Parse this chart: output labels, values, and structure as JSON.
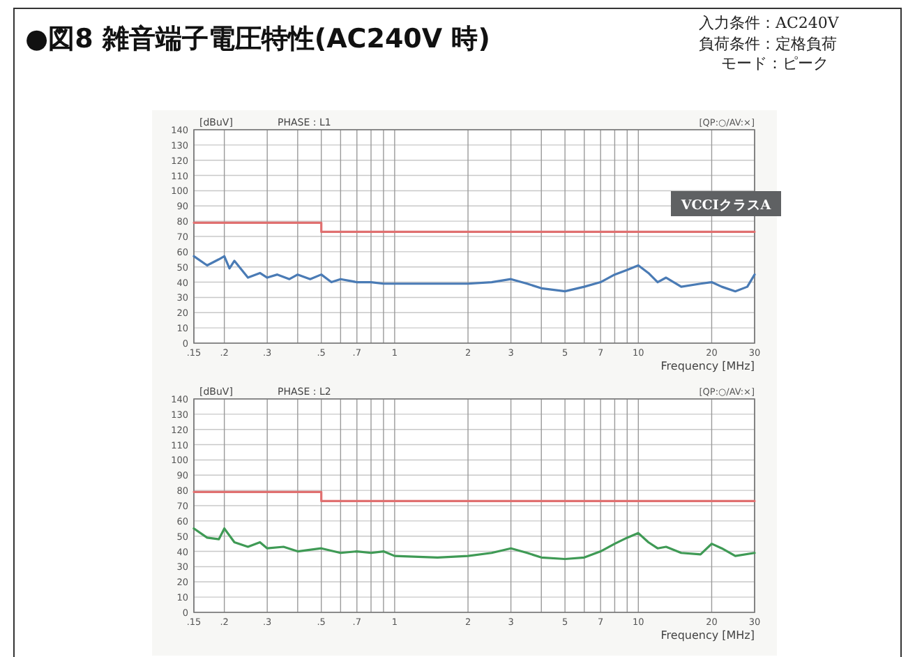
{
  "chart_data": [
    {
      "type": "line",
      "title": "●図8 雑音端子電圧特性(AC240V 時)",
      "subtitle": "PHASE : L1",
      "ylabel": "[dBuV]",
      "xlabel": "Frequency [MHz]",
      "annotations": [
        "入力条件：AC240V",
        "負荷条件：定格負荷",
        "モード：ピーク",
        "[QP:○/AV:×]",
        "VCCIクラスA"
      ],
      "log": "x",
      "xlim": [
        0.15,
        30
      ],
      "ylim": [
        0,
        140
      ],
      "grid": true,
      "xticks": [
        {
          "value": 0.15,
          "label": ".15"
        },
        {
          "value": 0.2,
          "label": ".2"
        },
        {
          "value": 0.3,
          "label": ".3"
        },
        {
          "value": 0.4,
          "label": null
        },
        {
          "value": 0.5,
          "label": ".5"
        },
        {
          "value": 0.6,
          "label": null
        },
        {
          "value": 0.7,
          "label": ".7"
        },
        {
          "value": 0.8,
          "label": null
        },
        {
          "value": 0.9,
          "label": null
        },
        1,
        2,
        3,
        {
          "value": 4,
          "label": null
        },
        5,
        {
          "value": 6,
          "label": null
        },
        7,
        {
          "value": 8,
          "label": null
        },
        {
          "value": 9,
          "label": null
        },
        10,
        20,
        30
      ],
      "yticks": [
        0,
        10,
        20,
        30,
        40,
        50,
        60,
        70,
        80,
        90,
        100,
        110,
        120,
        130,
        140
      ],
      "series": [
        {
          "color": "#4a7bb5",
          "x": [
            0.15,
            0.17,
            0.19,
            0.2,
            0.21,
            0.22,
            0.25,
            0.28,
            0.3,
            0.33,
            0.37,
            0.4,
            0.45,
            0.5,
            0.55,
            0.6,
            0.7,
            0.8,
            0.9,
            1,
            1.5,
            2,
            2.5,
            3,
            3.5,
            4,
            5,
            6,
            7,
            8,
            9,
            10,
            11,
            12,
            13,
            15,
            18,
            20,
            22,
            25,
            28,
            30
          ],
          "values": [
            57,
            51,
            55,
            57,
            49,
            54,
            43,
            46,
            43,
            45,
            42,
            45,
            42,
            45,
            40,
            42,
            40,
            40,
            39,
            39,
            39,
            39,
            40,
            42,
            39,
            36,
            34,
            37,
            40,
            45,
            48,
            51,
            46,
            40,
            43,
            37,
            39,
            40,
            37,
            34,
            37,
            45
          ]
        },
        {
          "color": "#e07070",
          "x": [
            0.15,
            0.5,
            0.5,
            30
          ],
          "values": [
            79,
            79,
            73,
            73
          ]
        }
      ]
    },
    {
      "type": "line",
      "subtitle": "PHASE : L2",
      "ylabel": "[dBuV]",
      "xlabel": "Frequency [MHz]",
      "annotations": [
        "[QP:○/AV:×]"
      ],
      "log": "x",
      "xlim": [
        0.15,
        30
      ],
      "ylim": [
        0,
        140
      ],
      "grid": true,
      "xticks": [
        {
          "value": 0.15,
          "label": ".15"
        },
        {
          "value": 0.2,
          "label": ".2"
        },
        {
          "value": 0.3,
          "label": ".3"
        },
        {
          "value": 0.4,
          "label": null
        },
        {
          "value": 0.5,
          "label": ".5"
        },
        {
          "value": 0.6,
          "label": null
        },
        {
          "value": 0.7,
          "label": ".7"
        },
        {
          "value": 0.8,
          "label": null
        },
        {
          "value": 0.9,
          "label": null
        },
        1,
        2,
        3,
        {
          "value": 4,
          "label": null
        },
        5,
        {
          "value": 6,
          "label": null
        },
        7,
        {
          "value": 8,
          "label": null
        },
        {
          "value": 9,
          "label": null
        },
        10,
        20,
        30
      ],
      "yticks": [
        0,
        10,
        20,
        30,
        40,
        50,
        60,
        70,
        80,
        90,
        100,
        110,
        120,
        130,
        140
      ],
      "series": [
        {
          "color": "#3f9a55",
          "x": [
            0.15,
            0.17,
            0.19,
            0.2,
            0.22,
            0.25,
            0.28,
            0.3,
            0.35,
            0.4,
            0.5,
            0.6,
            0.7,
            0.8,
            0.9,
            1,
            1.5,
            2,
            2.5,
            3,
            3.5,
            4,
            5,
            6,
            7,
            8,
            9,
            10,
            11,
            12,
            13,
            15,
            18,
            20,
            22,
            25,
            30
          ],
          "values": [
            55,
            49,
            48,
            55,
            46,
            43,
            46,
            42,
            43,
            40,
            42,
            39,
            40,
            39,
            40,
            37,
            36,
            37,
            39,
            42,
            39,
            36,
            35,
            36,
            40,
            45,
            49,
            52,
            46,
            42,
            43,
            39,
            38,
            45,
            42,
            37,
            39
          ]
        },
        {
          "color": "#e07070",
          "x": [
            0.15,
            0.5,
            0.5,
            30
          ],
          "values": [
            79,
            79,
            73,
            73
          ]
        }
      ]
    }
  ]
}
